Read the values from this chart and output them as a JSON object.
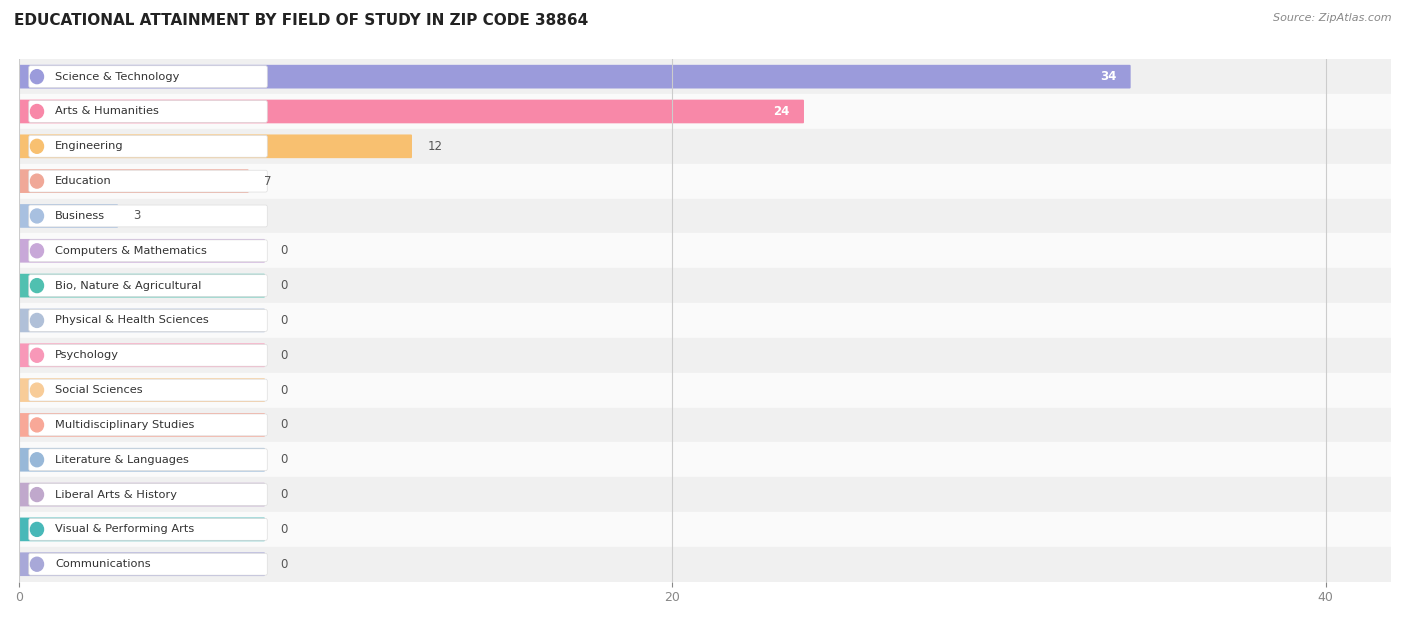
{
  "title": "EDUCATIONAL ATTAINMENT BY FIELD OF STUDY IN ZIP CODE 38864",
  "source": "Source: ZipAtlas.com",
  "categories": [
    "Science & Technology",
    "Arts & Humanities",
    "Engineering",
    "Education",
    "Business",
    "Computers & Mathematics",
    "Bio, Nature & Agricultural",
    "Physical & Health Sciences",
    "Psychology",
    "Social Sciences",
    "Multidisciplinary Studies",
    "Literature & Languages",
    "Liberal Arts & History",
    "Visual & Performing Arts",
    "Communications"
  ],
  "values": [
    34,
    24,
    12,
    7,
    3,
    0,
    0,
    0,
    0,
    0,
    0,
    0,
    0,
    0,
    0
  ],
  "bar_colors": [
    "#9b9bdb",
    "#f888a8",
    "#f8c070",
    "#f0a898",
    "#a8c0e0",
    "#c8a8d8",
    "#50c0b0",
    "#b0c0d8",
    "#f898b8",
    "#f8cc98",
    "#f8a898",
    "#98b8d8",
    "#c0a8cc",
    "#48b8b8",
    "#a8a8d8"
  ],
  "xlim": [
    0,
    42
  ],
  "xticks": [
    0,
    20,
    40
  ],
  "background_color": "#ffffff",
  "row_bg_even": "#f0f0f0",
  "row_bg_odd": "#fafafa",
  "title_fontsize": 11,
  "bar_height": 0.62,
  "zero_bar_width": 7.5
}
